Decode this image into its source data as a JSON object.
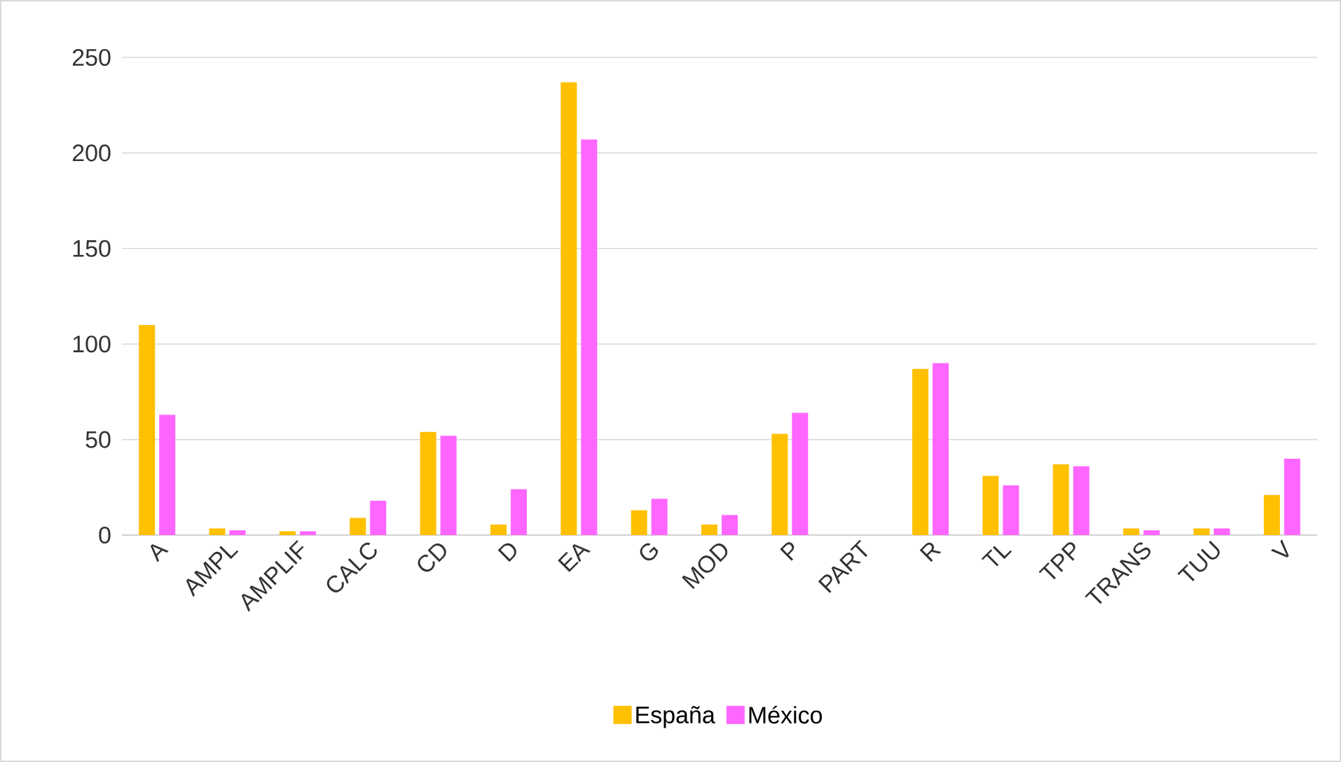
{
  "chart_data": {
    "type": "bar",
    "categories": [
      "A",
      "AMPL",
      "AMPLIF",
      "CALC",
      "CD",
      "D",
      "EA",
      "G",
      "MOD",
      "P",
      "PART",
      "R",
      "TL",
      "TPP",
      "TRANS",
      "TUU",
      "V"
    ],
    "series": [
      {
        "name": "España",
        "color": "#ffc000",
        "values": [
          110,
          3.5,
          2,
          9,
          54,
          5.5,
          237,
          13,
          5.5,
          53,
          0,
          87,
          31,
          37,
          3.5,
          3.5,
          21
        ]
      },
      {
        "name": "México",
        "color": "#ff66ff",
        "values": [
          63,
          2.5,
          2,
          18,
          52,
          24,
          207,
          19,
          10.5,
          64,
          0,
          90,
          26,
          36,
          2.5,
          3.5,
          40
        ]
      }
    ],
    "ylim": [
      0,
      250
    ],
    "yticks": [
      0,
      50,
      100,
      150,
      200,
      250
    ],
    "grid": "y",
    "legend": "bottom"
  }
}
